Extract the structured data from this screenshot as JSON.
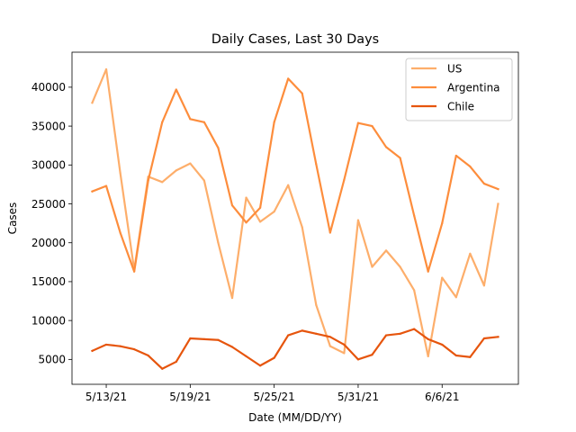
{
  "chart_data": {
    "type": "line",
    "title": "Daily Cases, Last 30 Days",
    "xlabel": "Date (MM/DD/YY)",
    "ylabel": "Cases",
    "x": [
      "5/12/21",
      "5/13/21",
      "5/14/21",
      "5/15/21",
      "5/16/21",
      "5/17/21",
      "5/18/21",
      "5/19/21",
      "5/20/21",
      "5/21/21",
      "5/22/21",
      "5/23/21",
      "5/24/21",
      "5/25/21",
      "5/26/21",
      "5/27/21",
      "5/28/21",
      "5/29/21",
      "5/30/21",
      "5/31/21",
      "6/1/21",
      "6/2/21",
      "6/3/21",
      "6/4/21",
      "6/5/21",
      "6/6/21",
      "6/7/21",
      "6/8/21",
      "6/9/21",
      "6/10/21"
    ],
    "xticks": [
      "5/13/21",
      "5/19/21",
      "5/25/21",
      "5/31/21",
      "6/6/21"
    ],
    "yticks": [
      5000,
      10000,
      15000,
      20000,
      25000,
      30000,
      35000,
      40000
    ],
    "ylim": [
      1800,
      44500
    ],
    "grid": false,
    "legend_position": "top-right",
    "series": [
      {
        "name": "US",
        "color": "#fdae6b",
        "values": [
          38000,
          42300,
          29000,
          16500,
          28500,
          27800,
          29300,
          30200,
          28000,
          20000,
          12900,
          25800,
          22700,
          24000,
          27400,
          22000,
          12000,
          6700,
          5800,
          22900,
          16900,
          19000,
          16900,
          13900,
          5400,
          15500,
          13000,
          18600,
          14500,
          25000
        ]
      },
      {
        "name": "Argentina",
        "color": "#fd8d3c",
        "values": [
          26600,
          27300,
          21300,
          16300,
          28000,
          35500,
          39700,
          35900,
          35500,
          32200,
          24800,
          22600,
          24500,
          35500,
          41100,
          39200,
          30100,
          21300,
          28100,
          35400,
          35000,
          32300,
          30900,
          23500,
          16300,
          22500,
          31200,
          29800,
          27600,
          26900
        ]
      },
      {
        "name": "Chile",
        "color": "#e6550d",
        "values": [
          6100,
          6900,
          6700,
          6300,
          5500,
          3800,
          4700,
          7700,
          7600,
          7500,
          6600,
          5400,
          4200,
          5200,
          8100,
          8700,
          8300,
          7900,
          6900,
          5000,
          5600,
          8100,
          8300,
          8900,
          7600,
          6900,
          5500,
          5300,
          7700,
          7900
        ]
      }
    ]
  }
}
